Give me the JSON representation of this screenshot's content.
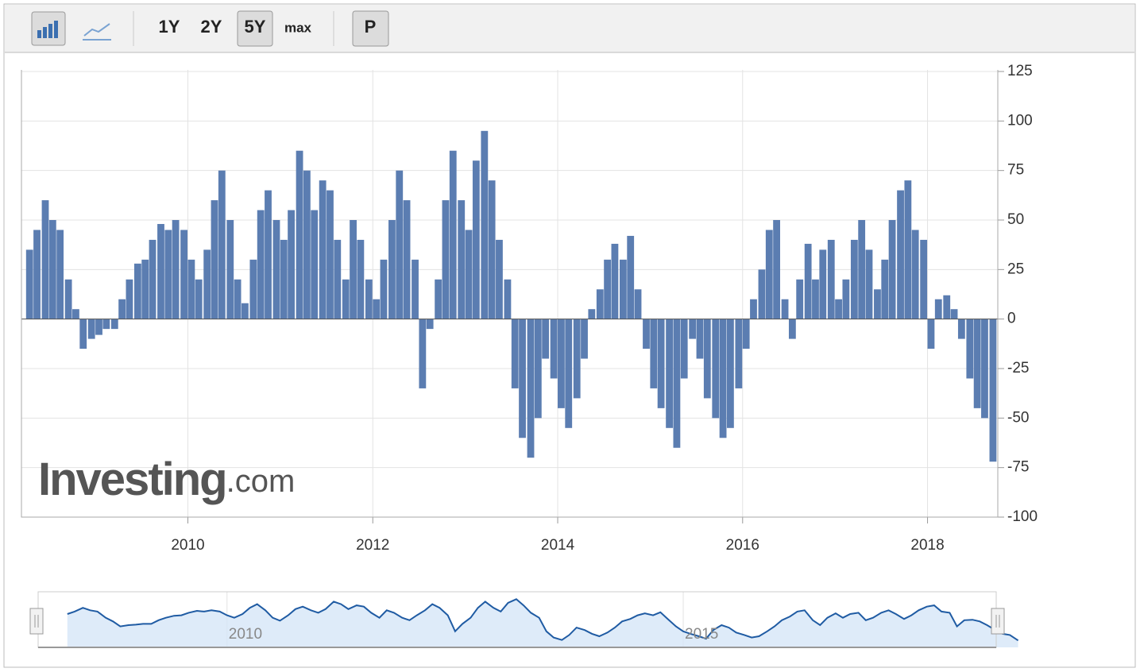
{
  "ui": {
    "buttons": [
      "1Y",
      "2Y",
      "5Y",
      "max",
      "P"
    ]
  },
  "watermark": {
    "brand": "Investing",
    "suffix": ".com"
  },
  "chart_data": {
    "type": "bar",
    "color": "#5b7db1",
    "grid": true,
    "x": [
      2008.25,
      2008.33,
      2008.42,
      2008.5,
      2008.58,
      2008.67,
      2008.75,
      2008.83,
      2008.92,
      2009,
      2009.08,
      2009.17,
      2009.25,
      2009.33,
      2009.42,
      2009.5,
      2009.58,
      2009.67,
      2009.75,
      2009.83,
      2009.92,
      2010,
      2010.08,
      2010.17,
      2010.25,
      2010.33,
      2010.42,
      2010.5,
      2010.58,
      2010.67,
      2010.75,
      2010.83,
      2010.92,
      2011,
      2011.08,
      2011.17,
      2011.25,
      2011.33,
      2011.42,
      2011.5,
      2011.58,
      2011.67,
      2011.75,
      2011.83,
      2011.92,
      2012,
      2012.08,
      2012.17,
      2012.25,
      2012.33,
      2012.42,
      2012.5,
      2012.58,
      2012.67,
      2012.75,
      2012.83,
      2012.92,
      2013,
      2013.08,
      2013.17,
      2013.25,
      2013.33,
      2013.42,
      2013.5,
      2013.58,
      2013.67,
      2013.75,
      2013.83,
      2013.92,
      2014,
      2014.08,
      2014.17,
      2014.25,
      2014.33,
      2014.42,
      2014.5,
      2014.58,
      2014.67,
      2014.75,
      2014.83,
      2014.92,
      2015,
      2015.08,
      2015.17,
      2015.25,
      2015.33,
      2015.42,
      2015.5,
      2015.58,
      2015.67,
      2015.75,
      2015.83,
      2015.92,
      2016,
      2016.08,
      2016.17,
      2016.25,
      2016.33,
      2016.42,
      2016.5,
      2016.58,
      2016.67,
      2016.75,
      2016.83,
      2016.92,
      2017,
      2017.08,
      2017.17,
      2017.25,
      2017.33,
      2017.42,
      2017.5,
      2017.58,
      2017.67,
      2017.75,
      2017.83,
      2017.92,
      2018,
      2018.08,
      2018.17,
      2018.25,
      2018.33,
      2018.42,
      2018.5,
      2018.58,
      2018.67
    ],
    "values": [
      35,
      45,
      60,
      50,
      45,
      20,
      5,
      -15,
      -10,
      -8,
      -5,
      -5,
      10,
      20,
      28,
      30,
      40,
      48,
      45,
      50,
      45,
      30,
      20,
      35,
      60,
      75,
      50,
      20,
      8,
      30,
      55,
      65,
      50,
      40,
      55,
      85,
      75,
      55,
      70,
      65,
      40,
      20,
      50,
      40,
      20,
      10,
      30,
      50,
      75,
      60,
      30,
      -35,
      -5,
      20,
      60,
      85,
      60,
      45,
      80,
      95,
      70,
      40,
      20,
      -35,
      -60,
      -70,
      -50,
      -20,
      -30,
      -45,
      -55,
      -40,
      -20,
      5,
      15,
      30,
      38,
      30,
      42,
      15,
      -15,
      -35,
      -45,
      -55,
      -65,
      -30,
      -10,
      -20,
      -40,
      -50,
      -60,
      -55,
      -35,
      -15,
      10,
      25,
      45,
      50,
      10,
      -10,
      20,
      38,
      20,
      35,
      40,
      10,
      20,
      40,
      50,
      35,
      15,
      30,
      50,
      65,
      70,
      45,
      40,
      -15,
      10,
      12,
      5,
      -10,
      -30,
      -45,
      -50,
      -72
    ],
    "xlim": [
      2008.2,
      2018.76
    ],
    "xticks": [
      2010,
      2012,
      2014,
      2016,
      2018
    ],
    "ylim": [
      -100,
      125
    ],
    "yticks": [
      -100,
      -75,
      -50,
      -25,
      0,
      25,
      50,
      75,
      100,
      125
    ],
    "navigator": {
      "xlim": [
        2007.93,
        2018.43
      ],
      "xticks": [
        2010,
        2015
      ],
      "ylim": [
        -100,
        125
      ]
    }
  }
}
